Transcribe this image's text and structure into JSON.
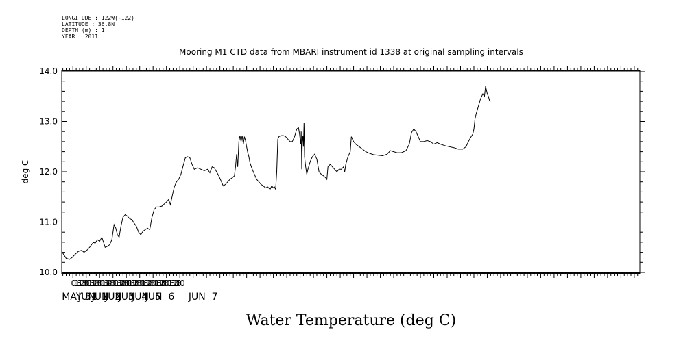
{
  "header": {
    "longitude": "LONGITUDE : 122W(-122)",
    "latitude": "LATITUDE : 36.8N",
    "depth": "DEPTH (m) : 1",
    "year": "YEAR : 2011"
  },
  "chart_data": {
    "type": "line",
    "title": "Mooring M1 CTD data from MBARI instrument id 1338 at original sampling intervals",
    "xlabel": "Water Temperature (deg C)",
    "ylabel": "deg C",
    "ylim": [
      10.0,
      14.0
    ],
    "y_ticks": [
      "10.0",
      "11.0",
      "12.0",
      "13.0",
      "14.0"
    ],
    "xlim_hours": [
      -20,
      1018
    ],
    "hour_tick_labels": [
      "06",
      "12",
      "18",
      "00",
      "06",
      "12",
      "18",
      "00",
      "06",
      "12",
      "18",
      "00",
      "06",
      "12",
      "18",
      "00",
      "06",
      "12",
      "18",
      "00",
      "06",
      "12",
      "18",
      "00",
      "06",
      "12",
      "18",
      "00",
      "06",
      "12",
      "18",
      "00"
    ],
    "day_labels": [
      "MAY 31",
      "JUN  1",
      "JUN  2",
      "JUN  3",
      "JUN  4",
      "JUN  5",
      "JUN  6",
      "JUN  7"
    ],
    "grid": false,
    "series": [
      {
        "name": "",
        "points": [
          [
            -20,
            10.42
          ],
          [
            -16,
            10.35
          ],
          [
            -12,
            10.28
          ],
          [
            -6,
            10.26
          ],
          [
            -1,
            10.3
          ],
          [
            4,
            10.36
          ],
          [
            10,
            10.42
          ],
          [
            16,
            10.44
          ],
          [
            20,
            10.4
          ],
          [
            26,
            10.45
          ],
          [
            30,
            10.5
          ],
          [
            34,
            10.56
          ],
          [
            37,
            10.6
          ],
          [
            40,
            10.58
          ],
          [
            44,
            10.65
          ],
          [
            48,
            10.62
          ],
          [
            52,
            10.7
          ],
          [
            55,
            10.6
          ],
          [
            58,
            10.5
          ],
          [
            62,
            10.52
          ],
          [
            66,
            10.55
          ],
          [
            70,
            10.65
          ],
          [
            74,
            10.95
          ],
          [
            77,
            10.88
          ],
          [
            80,
            10.75
          ],
          [
            83,
            10.7
          ],
          [
            86,
            10.9
          ],
          [
            90,
            11.1
          ],
          [
            94,
            11.15
          ],
          [
            98,
            11.12
          ],
          [
            102,
            11.07
          ],
          [
            106,
            11.05
          ],
          [
            110,
            10.98
          ],
          [
            114,
            10.92
          ],
          [
            118,
            10.8
          ],
          [
            122,
            10.75
          ],
          [
            126,
            10.82
          ],
          [
            130,
            10.85
          ],
          [
            134,
            10.88
          ],
          [
            138,
            10.85
          ],
          [
            142,
            11.1
          ],
          [
            146,
            11.25
          ],
          [
            150,
            11.3
          ],
          [
            155,
            11.3
          ],
          [
            160,
            11.32
          ],
          [
            164,
            11.36
          ],
          [
            168,
            11.4
          ],
          [
            172,
            11.45
          ],
          [
            175,
            11.35
          ],
          [
            178,
            11.5
          ],
          [
            182,
            11.7
          ],
          [
            186,
            11.8
          ],
          [
            190,
            11.85
          ],
          [
            194,
            11.95
          ],
          [
            198,
            12.12
          ],
          [
            202,
            12.28
          ],
          [
            206,
            12.3
          ],
          [
            210,
            12.28
          ],
          [
            214,
            12.15
          ],
          [
            218,
            12.05
          ],
          [
            224,
            12.08
          ],
          [
            230,
            12.05
          ],
          [
            236,
            12.02
          ],
          [
            242,
            12.05
          ],
          [
            246,
            11.98
          ],
          [
            250,
            12.1
          ],
          [
            254,
            12.08
          ],
          [
            258,
            12.0
          ],
          [
            262,
            11.92
          ],
          [
            266,
            11.82
          ],
          [
            270,
            11.72
          ],
          [
            274,
            11.75
          ],
          [
            278,
            11.8
          ],
          [
            282,
            11.85
          ],
          [
            286,
            11.88
          ],
          [
            290,
            11.92
          ],
          [
            292,
            12.1
          ],
          [
            294,
            12.35
          ],
          [
            296,
            12.1
          ],
          [
            298,
            12.6
          ],
          [
            300,
            12.72
          ],
          [
            302,
            12.6
          ],
          [
            304,
            12.72
          ],
          [
            306,
            12.55
          ],
          [
            308,
            12.7
          ],
          [
            310,
            12.62
          ],
          [
            312,
            12.5
          ],
          [
            314,
            12.38
          ],
          [
            316,
            12.3
          ],
          [
            318,
            12.18
          ],
          [
            322,
            12.05
          ],
          [
            326,
            11.95
          ],
          [
            330,
            11.85
          ],
          [
            334,
            11.8
          ],
          [
            338,
            11.75
          ],
          [
            342,
            11.72
          ],
          [
            346,
            11.68
          ],
          [
            350,
            11.7
          ],
          [
            354,
            11.65
          ],
          [
            357,
            11.72
          ],
          [
            360,
            11.68
          ],
          [
            362,
            11.7
          ],
          [
            364,
            11.65
          ],
          [
            366,
            12.0
          ],
          [
            368,
            12.65
          ],
          [
            370,
            12.7
          ],
          [
            374,
            12.72
          ],
          [
            378,
            12.72
          ],
          [
            382,
            12.7
          ],
          [
            386,
            12.65
          ],
          [
            390,
            12.6
          ],
          [
            394,
            12.6
          ],
          [
            398,
            12.7
          ],
          [
            402,
            12.85
          ],
          [
            405,
            12.88
          ],
          [
            407,
            12.75
          ],
          [
            409,
            12.55
          ],
          [
            410,
            12.8
          ],
          [
            411,
            12.05
          ],
          [
            412,
            12.6
          ],
          [
            413,
            12.72
          ],
          [
            414,
            12.5
          ],
          [
            415,
            12.98
          ],
          [
            416,
            12.3
          ],
          [
            418,
            12.1
          ],
          [
            420,
            11.95
          ],
          [
            422,
            12.05
          ],
          [
            426,
            12.2
          ],
          [
            430,
            12.3
          ],
          [
            434,
            12.35
          ],
          [
            438,
            12.25
          ],
          [
            442,
            12.0
          ],
          [
            446,
            11.95
          ],
          [
            450,
            11.92
          ],
          [
            454,
            11.88
          ],
          [
            456,
            11.85
          ],
          [
            458,
            12.1
          ],
          [
            462,
            12.15
          ],
          [
            466,
            12.1
          ],
          [
            470,
            12.05
          ],
          [
            474,
            12.0
          ],
          [
            478,
            12.05
          ],
          [
            482,
            12.05
          ],
          [
            486,
            12.1
          ],
          [
            488,
            12.0
          ],
          [
            490,
            12.15
          ],
          [
            494,
            12.3
          ],
          [
            498,
            12.4
          ],
          [
            500,
            12.7
          ],
          [
            504,
            12.6
          ],
          [
            508,
            12.55
          ],
          [
            514,
            12.5
          ],
          [
            520,
            12.45
          ],
          [
            526,
            12.4
          ],
          [
            532,
            12.37
          ],
          [
            540,
            12.34
          ],
          [
            548,
            12.33
          ],
          [
            556,
            12.32
          ],
          [
            564,
            12.35
          ],
          [
            570,
            12.42
          ],
          [
            576,
            12.4
          ],
          [
            582,
            12.38
          ],
          [
            590,
            12.38
          ],
          [
            598,
            12.42
          ],
          [
            604,
            12.55
          ],
          [
            608,
            12.78
          ],
          [
            612,
            12.85
          ],
          [
            616,
            12.8
          ],
          [
            620,
            12.7
          ],
          [
            624,
            12.6
          ],
          [
            630,
            12.6
          ],
          [
            636,
            12.62
          ],
          [
            642,
            12.6
          ],
          [
            648,
            12.55
          ],
          [
            654,
            12.58
          ],
          [
            660,
            12.55
          ],
          [
            668,
            12.52
          ],
          [
            676,
            12.5
          ],
          [
            684,
            12.48
          ],
          [
            692,
            12.45
          ],
          [
            700,
            12.45
          ],
          [
            706,
            12.5
          ],
          [
            710,
            12.6
          ],
          [
            714,
            12.68
          ],
          [
            718,
            12.75
          ],
          [
            720,
            12.85
          ],
          [
            722,
            13.05
          ],
          [
            724,
            13.15
          ],
          [
            728,
            13.3
          ],
          [
            732,
            13.45
          ],
          [
            736,
            13.55
          ],
          [
            739,
            13.5
          ],
          [
            741,
            13.7
          ],
          [
            744,
            13.55
          ],
          [
            746,
            13.5
          ],
          [
            748,
            13.42
          ],
          [
            750,
            13.4
          ]
        ]
      }
    ]
  }
}
